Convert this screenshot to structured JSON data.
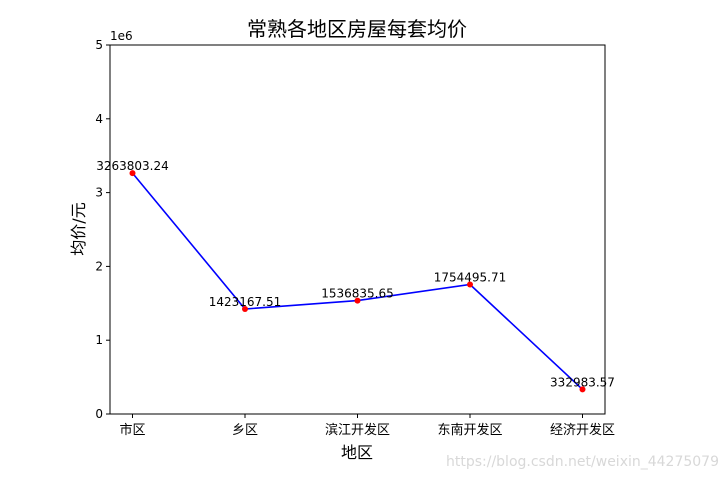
{
  "chart_data": {
    "type": "line",
    "title": "常熟各地区房屋每套均价",
    "xlabel": "地区",
    "ylabel": "均价/元",
    "offset_text": "1e6",
    "categories": [
      "市区",
      "乡区",
      "滨江开发区",
      "东南开发区",
      "经济开发区"
    ],
    "series": [
      {
        "values": [
          3263803.24,
          1423167.51,
          1536835.65,
          1754495.71,
          332983.57
        ],
        "labels": [
          "3263803.24",
          "1423167.51",
          "1536835.65",
          "1754495.71",
          "332983.57"
        ],
        "line_color": "#0000ff",
        "marker_color": "#ff0000"
      }
    ],
    "ylim": [
      0,
      5000000
    ],
    "yticks": [
      0,
      1000000,
      2000000,
      3000000,
      4000000,
      5000000
    ],
    "ytick_labels": [
      "0",
      "1",
      "2",
      "3",
      "4",
      "5"
    ],
    "grid": false
  },
  "watermark": "https://blog.csdn.net/weixin_44275079"
}
